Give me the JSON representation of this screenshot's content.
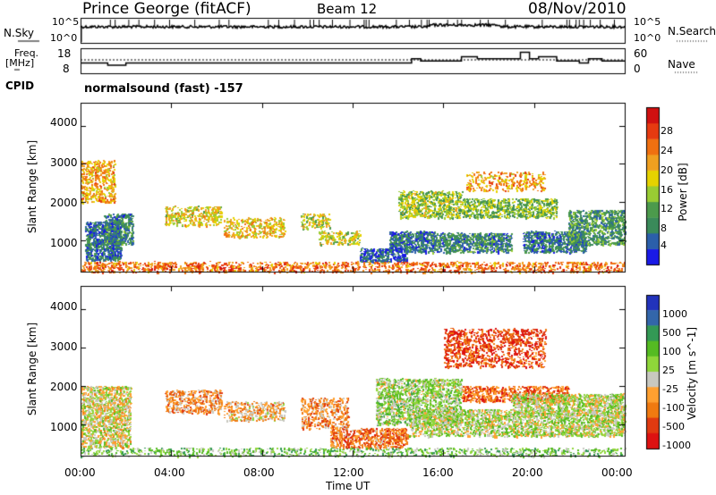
{
  "header": {
    "station": "Prince George (fitACF)",
    "beam": "Beam 12",
    "date": "08/Nov/2010"
  },
  "noise_panel": {
    "left_label": "N.Sky",
    "right_label": "N.Search",
    "left_ticks": [
      "10^5",
      "10^0"
    ],
    "right_ticks": [
      "10^5",
      "10^0"
    ]
  },
  "freq_panel": {
    "left_label_1": "Freq.",
    "left_label_2": "[MHz]",
    "right_label": "Nave",
    "left_ticks": [
      "18",
      "8"
    ],
    "right_ticks": [
      "60",
      "0"
    ],
    "freq_steps": [
      [
        0,
        1
      ],
      [
        1.2,
        0
      ],
      [
        2.0,
        1
      ],
      [
        14.6,
        3
      ],
      [
        15.0,
        2
      ],
      [
        16.8,
        4
      ],
      [
        17.5,
        3
      ],
      [
        19.4,
        6
      ],
      [
        19.8,
        3
      ],
      [
        20.2,
        4
      ],
      [
        21.0,
        2
      ],
      [
        21.5,
        2
      ],
      [
        22.0,
        1
      ],
      [
        22.4,
        3
      ],
      [
        23.0,
        2
      ],
      [
        24,
        2
      ]
    ]
  },
  "cpid": {
    "label": "CPID",
    "program": "normalsound (fast) -157"
  },
  "colors": {
    "power": [
      "#1a1ae6",
      "#2b5faa",
      "#3a8a5a",
      "#4c9a4c",
      "#99cc33",
      "#e6d200",
      "#f0a020",
      "#f07010",
      "#e63a10",
      "#d01010"
    ],
    "velocity": [
      "#2233bb",
      "#3366aa",
      "#339955",
      "#55bb22",
      "#8fd63a",
      "#c8c8c0",
      "#ffa030",
      "#f07a10",
      "#e03a10",
      "#dd1111"
    ]
  },
  "chart_data": [
    {
      "type": "heatmap",
      "name": "Power",
      "xlabel": "Time UT",
      "ylabel": "Slant Range [km]",
      "x_ticks": [
        "00:00",
        "04:00",
        "08:00",
        "12:00",
        "16:00",
        "20:00",
        "00:00"
      ],
      "y_ticks": [
        "1000",
        "2000",
        "3000",
        "4000"
      ],
      "ylim": [
        180,
        4600
      ],
      "xlim": [
        0,
        24
      ],
      "colorbar_label": "Power [dB]",
      "colorbar_ticks": [
        "4",
        "8",
        "12",
        "16",
        "20",
        "24",
        "28"
      ],
      "blobs": [
        [
          0.2,
          1.8,
          500,
          1500,
          0.8,
          0.9
        ],
        [
          1.0,
          2.3,
          900,
          1700,
          0.75,
          0.8
        ],
        [
          0.0,
          1.5,
          2000,
          3100,
          0.35,
          0.5
        ],
        [
          3.7,
          6.2,
          1400,
          1900,
          0.45,
          0.5
        ],
        [
          6.3,
          9.0,
          1100,
          1600,
          0.4,
          0.45
        ],
        [
          9.7,
          11.0,
          1300,
          1700,
          0.5,
          0.45
        ],
        [
          10.5,
          12.3,
          900,
          1250,
          0.5,
          0.5
        ],
        [
          12.3,
          14.4,
          450,
          800,
          0.85,
          0.75
        ],
        [
          13.6,
          15.6,
          700,
          1250,
          0.8,
          0.8
        ],
        [
          14.0,
          16.8,
          1600,
          2300,
          0.55,
          0.6
        ],
        [
          15.5,
          19.0,
          700,
          1200,
          0.75,
          0.75
        ],
        [
          16.8,
          21.0,
          1600,
          2100,
          0.6,
          0.6
        ],
        [
          19.5,
          22.3,
          700,
          1250,
          0.8,
          0.8
        ],
        [
          21.5,
          24.0,
          900,
          1800,
          0.7,
          0.7
        ],
        [
          17.0,
          20.5,
          2300,
          2800,
          0.35,
          0.3
        ],
        [
          0.0,
          24.0,
          180,
          450,
          0.25,
          0.4
        ]
      ]
    },
    {
      "type": "heatmap",
      "name": "Velocity",
      "xlabel": "Time UT",
      "ylabel": "Slant Range [km]",
      "x_ticks": [
        "00:00",
        "04:00",
        "08:00",
        "12:00",
        "16:00",
        "20:00",
        "00:00"
      ],
      "y_ticks": [
        "1000",
        "2000",
        "3000",
        "4000"
      ],
      "ylim": [
        180,
        4600
      ],
      "xlim": [
        0,
        24
      ],
      "colorbar_label": "Velocity [m s^-1]",
      "colorbar_ticks": [
        "1000",
        "500",
        "100",
        "25",
        "-25",
        "-100",
        "-500",
        "-1000"
      ],
      "blobs": [
        [
          0.0,
          2.2,
          400,
          2000,
          0.55,
          0.7
        ],
        [
          3.7,
          6.2,
          1300,
          1900,
          0.7,
          0.5
        ],
        [
          6.3,
          9.0,
          1100,
          1600,
          0.65,
          0.45
        ],
        [
          9.7,
          11.8,
          900,
          1700,
          0.7,
          0.45
        ],
        [
          11.0,
          14.4,
          400,
          900,
          0.75,
          0.7
        ],
        [
          13.0,
          16.8,
          1000,
          2200,
          0.45,
          0.6
        ],
        [
          14.5,
          19.0,
          700,
          1400,
          0.5,
          0.6
        ],
        [
          16.8,
          21.5,
          1600,
          2000,
          0.78,
          0.6
        ],
        [
          19.0,
          24.0,
          700,
          1800,
          0.5,
          0.75
        ],
        [
          16.0,
          20.5,
          2500,
          3500,
          0.85,
          0.4
        ],
        [
          0.0,
          24.0,
          180,
          400,
          0.4,
          0.3
        ]
      ]
    }
  ]
}
